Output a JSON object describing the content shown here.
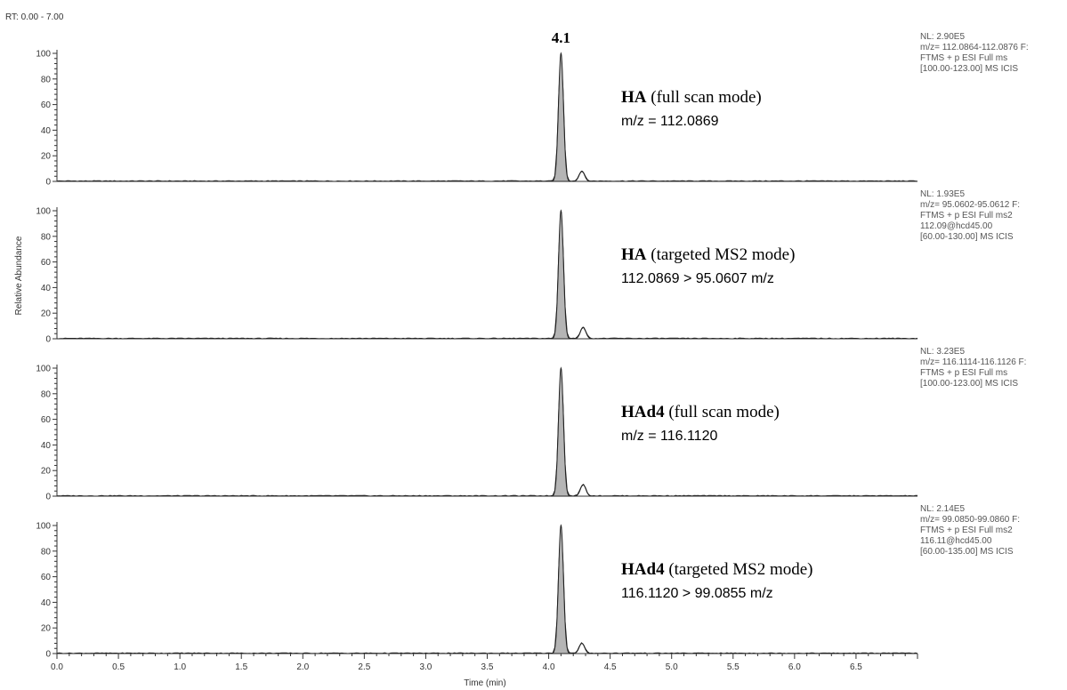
{
  "chart_data": {
    "type": "line",
    "rt_range": "RT: 0.00 - 7.00",
    "xlabel": "Time (min)",
    "ylabel": "Relative Abundance",
    "xlim": [
      0,
      7
    ],
    "ylim": [
      0,
      100
    ],
    "x_ticks": [
      "0.0",
      "0.5",
      "1.0",
      "1.5",
      "2.0",
      "2.5",
      "3.0",
      "3.5",
      "4.0",
      "4.5",
      "5.0",
      "5.5",
      "6.0",
      "6.5"
    ],
    "y_ticks": [
      "0",
      "20",
      "40",
      "60",
      "80",
      "100"
    ],
    "peak_label": "4.1",
    "peak_rt": 4.1,
    "panels": [
      {
        "title_bold": "HA",
        "title_rest": " (full scan mode)",
        "mz_line": "m/z = 112.0869",
        "info": [
          "NL: 2.90E5",
          "m/z= 112.0864-112.0876 F:",
          "FTMS + p ESI Full ms",
          "[100.00-123.00]  MS  ICIS"
        ],
        "peaks": [
          {
            "rt": 4.1,
            "height": 100,
            "filled": true
          },
          {
            "rt": 4.27,
            "height": 8,
            "filled": false
          }
        ]
      },
      {
        "title_bold": "HA",
        "title_rest": " (targeted MS2 mode)",
        "mz_line": "112.0869 > 95.0607 m/z",
        "info": [
          "NL: 1.93E5",
          "m/z= 95.0602-95.0612 F:",
          "FTMS + p ESI Full ms2",
          "112.09@hcd45.00",
          "[60.00-130.00]  MS  ICIS"
        ],
        "peaks": [
          {
            "rt": 4.1,
            "height": 100,
            "filled": true
          },
          {
            "rt": 4.28,
            "height": 9,
            "filled": false
          }
        ]
      },
      {
        "title_bold": "HAd4",
        "title_rest": " (full scan mode)",
        "mz_line": "m/z = 116.1120",
        "info": [
          "NL: 3.23E5",
          "m/z= 116.1114-116.1126 F:",
          "FTMS + p ESI Full ms",
          "[100.00-123.00]  MS  ICIS"
        ],
        "peaks": [
          {
            "rt": 4.1,
            "height": 100,
            "filled": true
          },
          {
            "rt": 4.28,
            "height": 9,
            "filled": false
          }
        ]
      },
      {
        "title_bold": "HAd4",
        "title_rest": " (targeted MS2 mode)",
        "mz_line": "116.1120 > 99.0855 m/z",
        "info": [
          "NL: 2.14E5",
          "m/z= 99.0850-99.0860 F:",
          "FTMS + p ESI Full ms2",
          "116.11@hcd45.00",
          "[60.00-135.00]  MS  ICIS"
        ],
        "peaks": [
          {
            "rt": 4.1,
            "height": 100,
            "filled": true
          },
          {
            "rt": 4.27,
            "height": 8,
            "filled": false
          }
        ]
      }
    ],
    "colors": {
      "fill": "#b5b5b5",
      "line": "#222222",
      "axis": "#333333"
    }
  }
}
